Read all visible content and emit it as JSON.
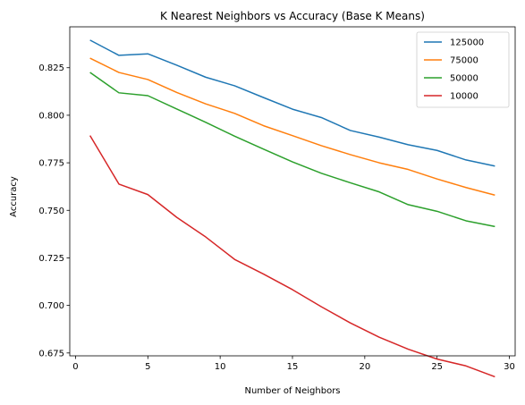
{
  "chart_data": {
    "type": "line",
    "title": "K Nearest Neighbors vs Accuracy (Base K Means)",
    "xlabel": "Number of Neighbors",
    "ylabel": "Accuracy",
    "xlim": [
      -0.4,
      30.4
    ],
    "ylim": [
      0.6735,
      0.8465
    ],
    "xticks": [
      0,
      5,
      10,
      15,
      20,
      25,
      30
    ],
    "xtick_labels": [
      "0",
      "5",
      "10",
      "15",
      "20",
      "25",
      "30"
    ],
    "yticks": [
      0.675,
      0.7,
      0.725,
      0.75,
      0.775,
      0.8,
      0.825
    ],
    "ytick_labels": [
      "0.675",
      "0.700",
      "0.725",
      "0.750",
      "0.775",
      "0.800",
      "0.825"
    ],
    "grid": false,
    "legend_position": "top-right",
    "x": [
      1,
      3,
      5,
      7,
      9,
      11,
      13,
      15,
      17,
      19,
      21,
      23,
      25,
      27,
      29
    ],
    "series": [
      {
        "name": "125000",
        "color": "#1f77b4",
        "values": [
          0.8395,
          0.8315,
          0.8323,
          0.8263,
          0.82,
          0.8155,
          0.8093,
          0.8032,
          0.7988,
          0.792,
          0.7885,
          0.7845,
          0.7815,
          0.7765,
          0.7733
        ]
      },
      {
        "name": "75000",
        "color": "#ff7f0e",
        "values": [
          0.83,
          0.8225,
          0.8188,
          0.812,
          0.806,
          0.801,
          0.7945,
          0.7893,
          0.784,
          0.7793,
          0.775,
          0.7715,
          0.7665,
          0.762,
          0.758
        ]
      },
      {
        "name": "50000",
        "color": "#2ca02c",
        "values": [
          0.8225,
          0.8118,
          0.8103,
          0.8033,
          0.7963,
          0.789,
          0.7822,
          0.7755,
          0.7695,
          0.7645,
          0.7597,
          0.753,
          0.7495,
          0.7445,
          0.7415
        ]
      },
      {
        "name": "10000",
        "color": "#d62728",
        "values": [
          0.7893,
          0.7638,
          0.7583,
          0.7463,
          0.736,
          0.7242,
          0.7165,
          0.7083,
          0.6993,
          0.6908,
          0.6833,
          0.677,
          0.6718,
          0.6682,
          0.6625
        ]
      }
    ]
  }
}
